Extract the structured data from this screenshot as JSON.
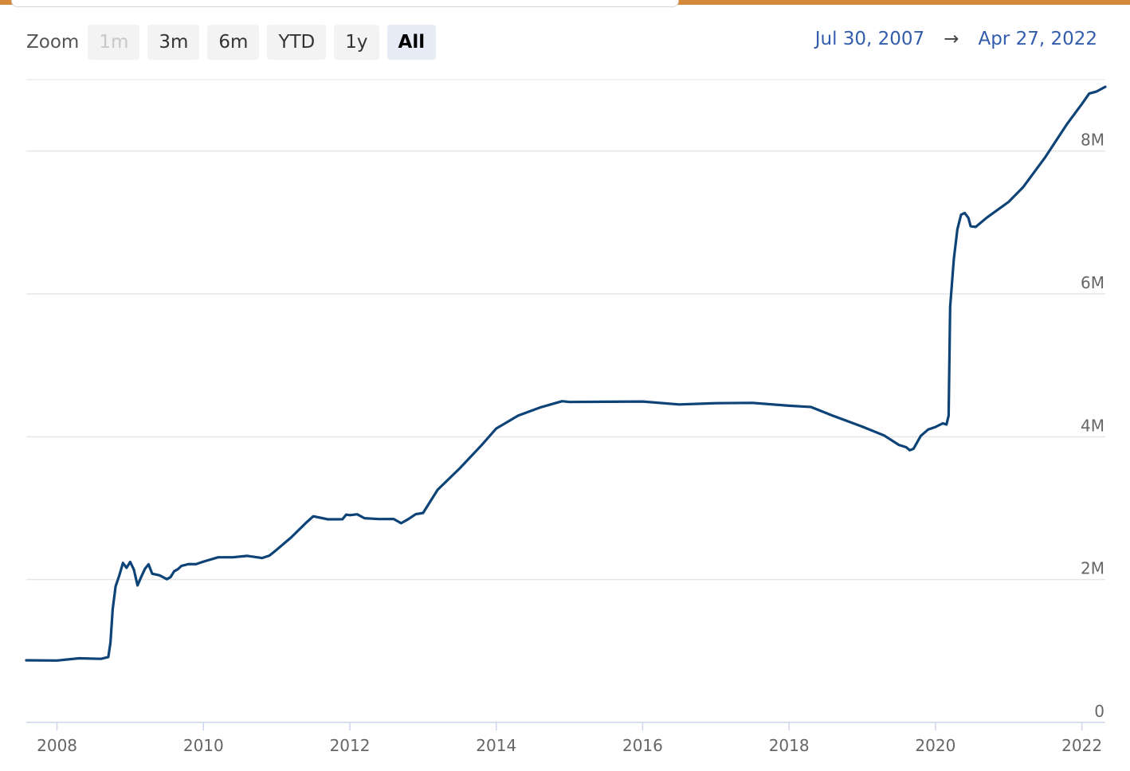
{
  "colors": {
    "accent_bar": "#d4893a",
    "line": "#0d4377",
    "grid": "#e6e6e6",
    "date_link": "#335cad"
  },
  "toolbar": {
    "zoom_label": "Zoom",
    "buttons": [
      {
        "label": "1m",
        "state": "disabled"
      },
      {
        "label": "3m",
        "state": "normal"
      },
      {
        "label": "6m",
        "state": "normal"
      },
      {
        "label": "YTD",
        "state": "normal"
      },
      {
        "label": "1y",
        "state": "normal"
      },
      {
        "label": "All",
        "state": "active"
      }
    ]
  },
  "range": {
    "from": "Jul 30, 2007",
    "arrow": "→",
    "to": "Apr 27, 2022"
  },
  "chart_data": {
    "type": "line",
    "x_unit": "year",
    "xlim": [
      2007.58,
      2022.32
    ],
    "ylim": [
      0,
      9000000
    ],
    "x_ticks": [
      2008,
      2010,
      2012,
      2014,
      2016,
      2018,
      2020,
      2022
    ],
    "x_tick_labels": [
      "2008",
      "2010",
      "2012",
      "2014",
      "2016",
      "2018",
      "2020",
      "2022"
    ],
    "y_ticks": [
      0,
      2000000,
      4000000,
      6000000,
      8000000
    ],
    "y_tick_labels": [
      "0",
      "2M",
      "4M",
      "6M",
      "8M"
    ],
    "grid": "horizontal",
    "legend": "none",
    "series": [
      {
        "x": [
          2007.58,
          2008.0,
          2008.3,
          2008.6,
          2008.7,
          2008.73,
          2008.76,
          2008.8,
          2008.85,
          2008.9,
          2008.95,
          2009.0,
          2009.05,
          2009.1,
          2009.15,
          2009.2,
          2009.25,
          2009.3,
          2009.4,
          2009.5,
          2009.55,
          2009.6,
          2009.65,
          2009.7,
          2009.8,
          2009.9,
          2010.0,
          2010.2,
          2010.4,
          2010.6,
          2010.8,
          2010.9,
          2011.0,
          2011.2,
          2011.4,
          2011.5,
          2011.7,
          2011.9,
          2011.95,
          2012.0,
          2012.1,
          2012.2,
          2012.4,
          2012.6,
          2012.7,
          2012.8,
          2012.9,
          2013.0,
          2013.2,
          2013.5,
          2013.8,
          2014.0,
          2014.3,
          2014.6,
          2014.9,
          2015.0,
          2015.5,
          2016.0,
          2016.5,
          2017.0,
          2017.5,
          2018.0,
          2018.3,
          2018.6,
          2019.0,
          2019.3,
          2019.5,
          2019.6,
          2019.65,
          2019.7,
          2019.8,
          2019.9,
          2020.0,
          2020.1,
          2020.15,
          2020.18,
          2020.2,
          2020.25,
          2020.3,
          2020.35,
          2020.4,
          2020.45,
          2020.48,
          2020.55,
          2020.7,
          2021.0,
          2021.2,
          2021.5,
          2021.8,
          2022.0,
          2022.1,
          2022.2,
          2022.32
        ],
        "y": [
          870000,
          880000,
          880000,
          900000,
          920000,
          1100000,
          1600000,
          1900000,
          2050000,
          2250000,
          2150000,
          2250000,
          2150000,
          1900000,
          2050000,
          2150000,
          2200000,
          2100000,
          2050000,
          2000000,
          2050000,
          2100000,
          2150000,
          2200000,
          2200000,
          2230000,
          2250000,
          2300000,
          2330000,
          2320000,
          2300000,
          2350000,
          2400000,
          2600000,
          2800000,
          2870000,
          2860000,
          2840000,
          2900000,
          2920000,
          2900000,
          2860000,
          2860000,
          2830000,
          2800000,
          2850000,
          2900000,
          2950000,
          3250000,
          3550000,
          3900000,
          4100000,
          4300000,
          4420000,
          4480000,
          4500000,
          4490000,
          4480000,
          4470000,
          4460000,
          4470000,
          4450000,
          4400000,
          4300000,
          4150000,
          4000000,
          3900000,
          3850000,
          3800000,
          3850000,
          4000000,
          4100000,
          4150000,
          4170000,
          4180000,
          4300000,
          5800000,
          6500000,
          6900000,
          7100000,
          7150000,
          7050000,
          6950000,
          6950000,
          7050000,
          7300000,
          7500000,
          7900000,
          8400000,
          8650000,
          8800000,
          8850000,
          8900000
        ]
      }
    ]
  }
}
